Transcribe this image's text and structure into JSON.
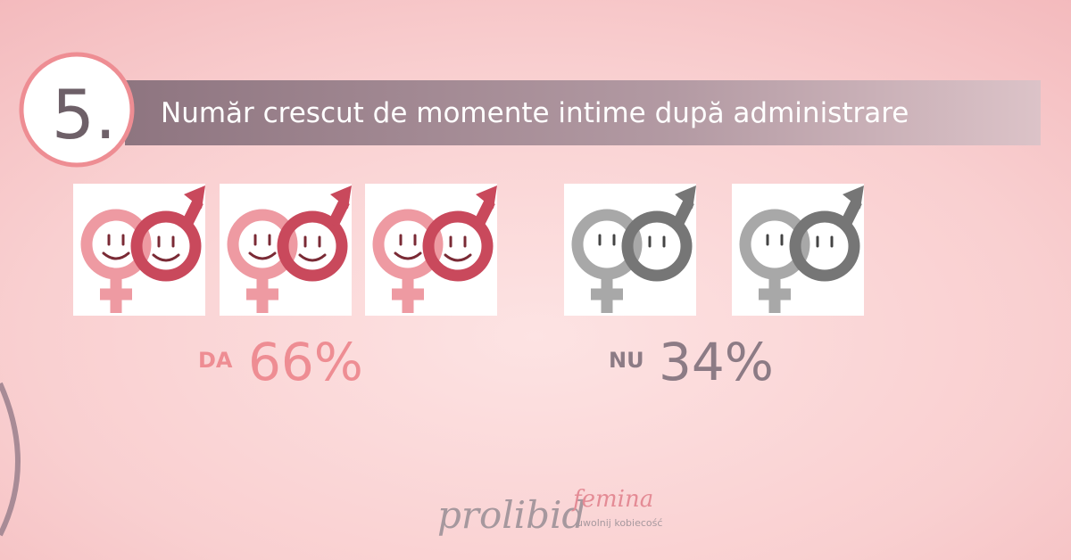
{
  "badge": "5.",
  "title": "Număr crescut de momente intime după administrare",
  "yes": {
    "label": "DA",
    "value": "66%"
  },
  "no": {
    "label": "NU",
    "value": "34%"
  },
  "logo": {
    "brand": "prolibid",
    "sub": "femina",
    "tagline": "uwolnij kobiecość"
  }
}
